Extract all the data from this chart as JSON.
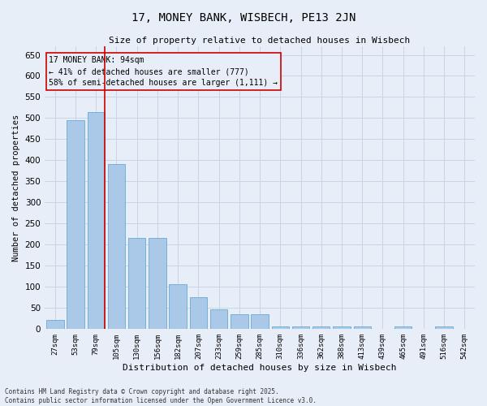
{
  "title": "17, MONEY BANK, WISBECH, PE13 2JN",
  "subtitle": "Size of property relative to detached houses in Wisbech",
  "xlabel": "Distribution of detached houses by size in Wisbech",
  "ylabel": "Number of detached properties",
  "categories": [
    "27sqm",
    "53sqm",
    "79sqm",
    "105sqm",
    "130sqm",
    "156sqm",
    "182sqm",
    "207sqm",
    "233sqm",
    "259sqm",
    "285sqm",
    "310sqm",
    "336sqm",
    "362sqm",
    "388sqm",
    "413sqm",
    "439sqm",
    "465sqm",
    "491sqm",
    "516sqm",
    "542sqm"
  ],
  "values": [
    20,
    495,
    515,
    390,
    215,
    215,
    105,
    75,
    45,
    35,
    35,
    5,
    5,
    5,
    5,
    5,
    0,
    5,
    0,
    5,
    0
  ],
  "bar_color": "#aac9e8",
  "bar_edge_color": "#6aaad4",
  "grid_color": "#c8d4e8",
  "background_color": "#e8eef8",
  "vline_color": "#cc0000",
  "vline_position": 2.43,
  "annotation_text": "17 MONEY BANK: 94sqm\n← 41% of detached houses are smaller (777)\n58% of semi-detached houses are larger (1,111) →",
  "annotation_box_color": "#cc0000",
  "ylim": [
    0,
    670
  ],
  "yticks": [
    0,
    50,
    100,
    150,
    200,
    250,
    300,
    350,
    400,
    450,
    500,
    550,
    600,
    650
  ],
  "footer_line1": "Contains HM Land Registry data © Crown copyright and database right 2025.",
  "footer_line2": "Contains public sector information licensed under the Open Government Licence v3.0."
}
